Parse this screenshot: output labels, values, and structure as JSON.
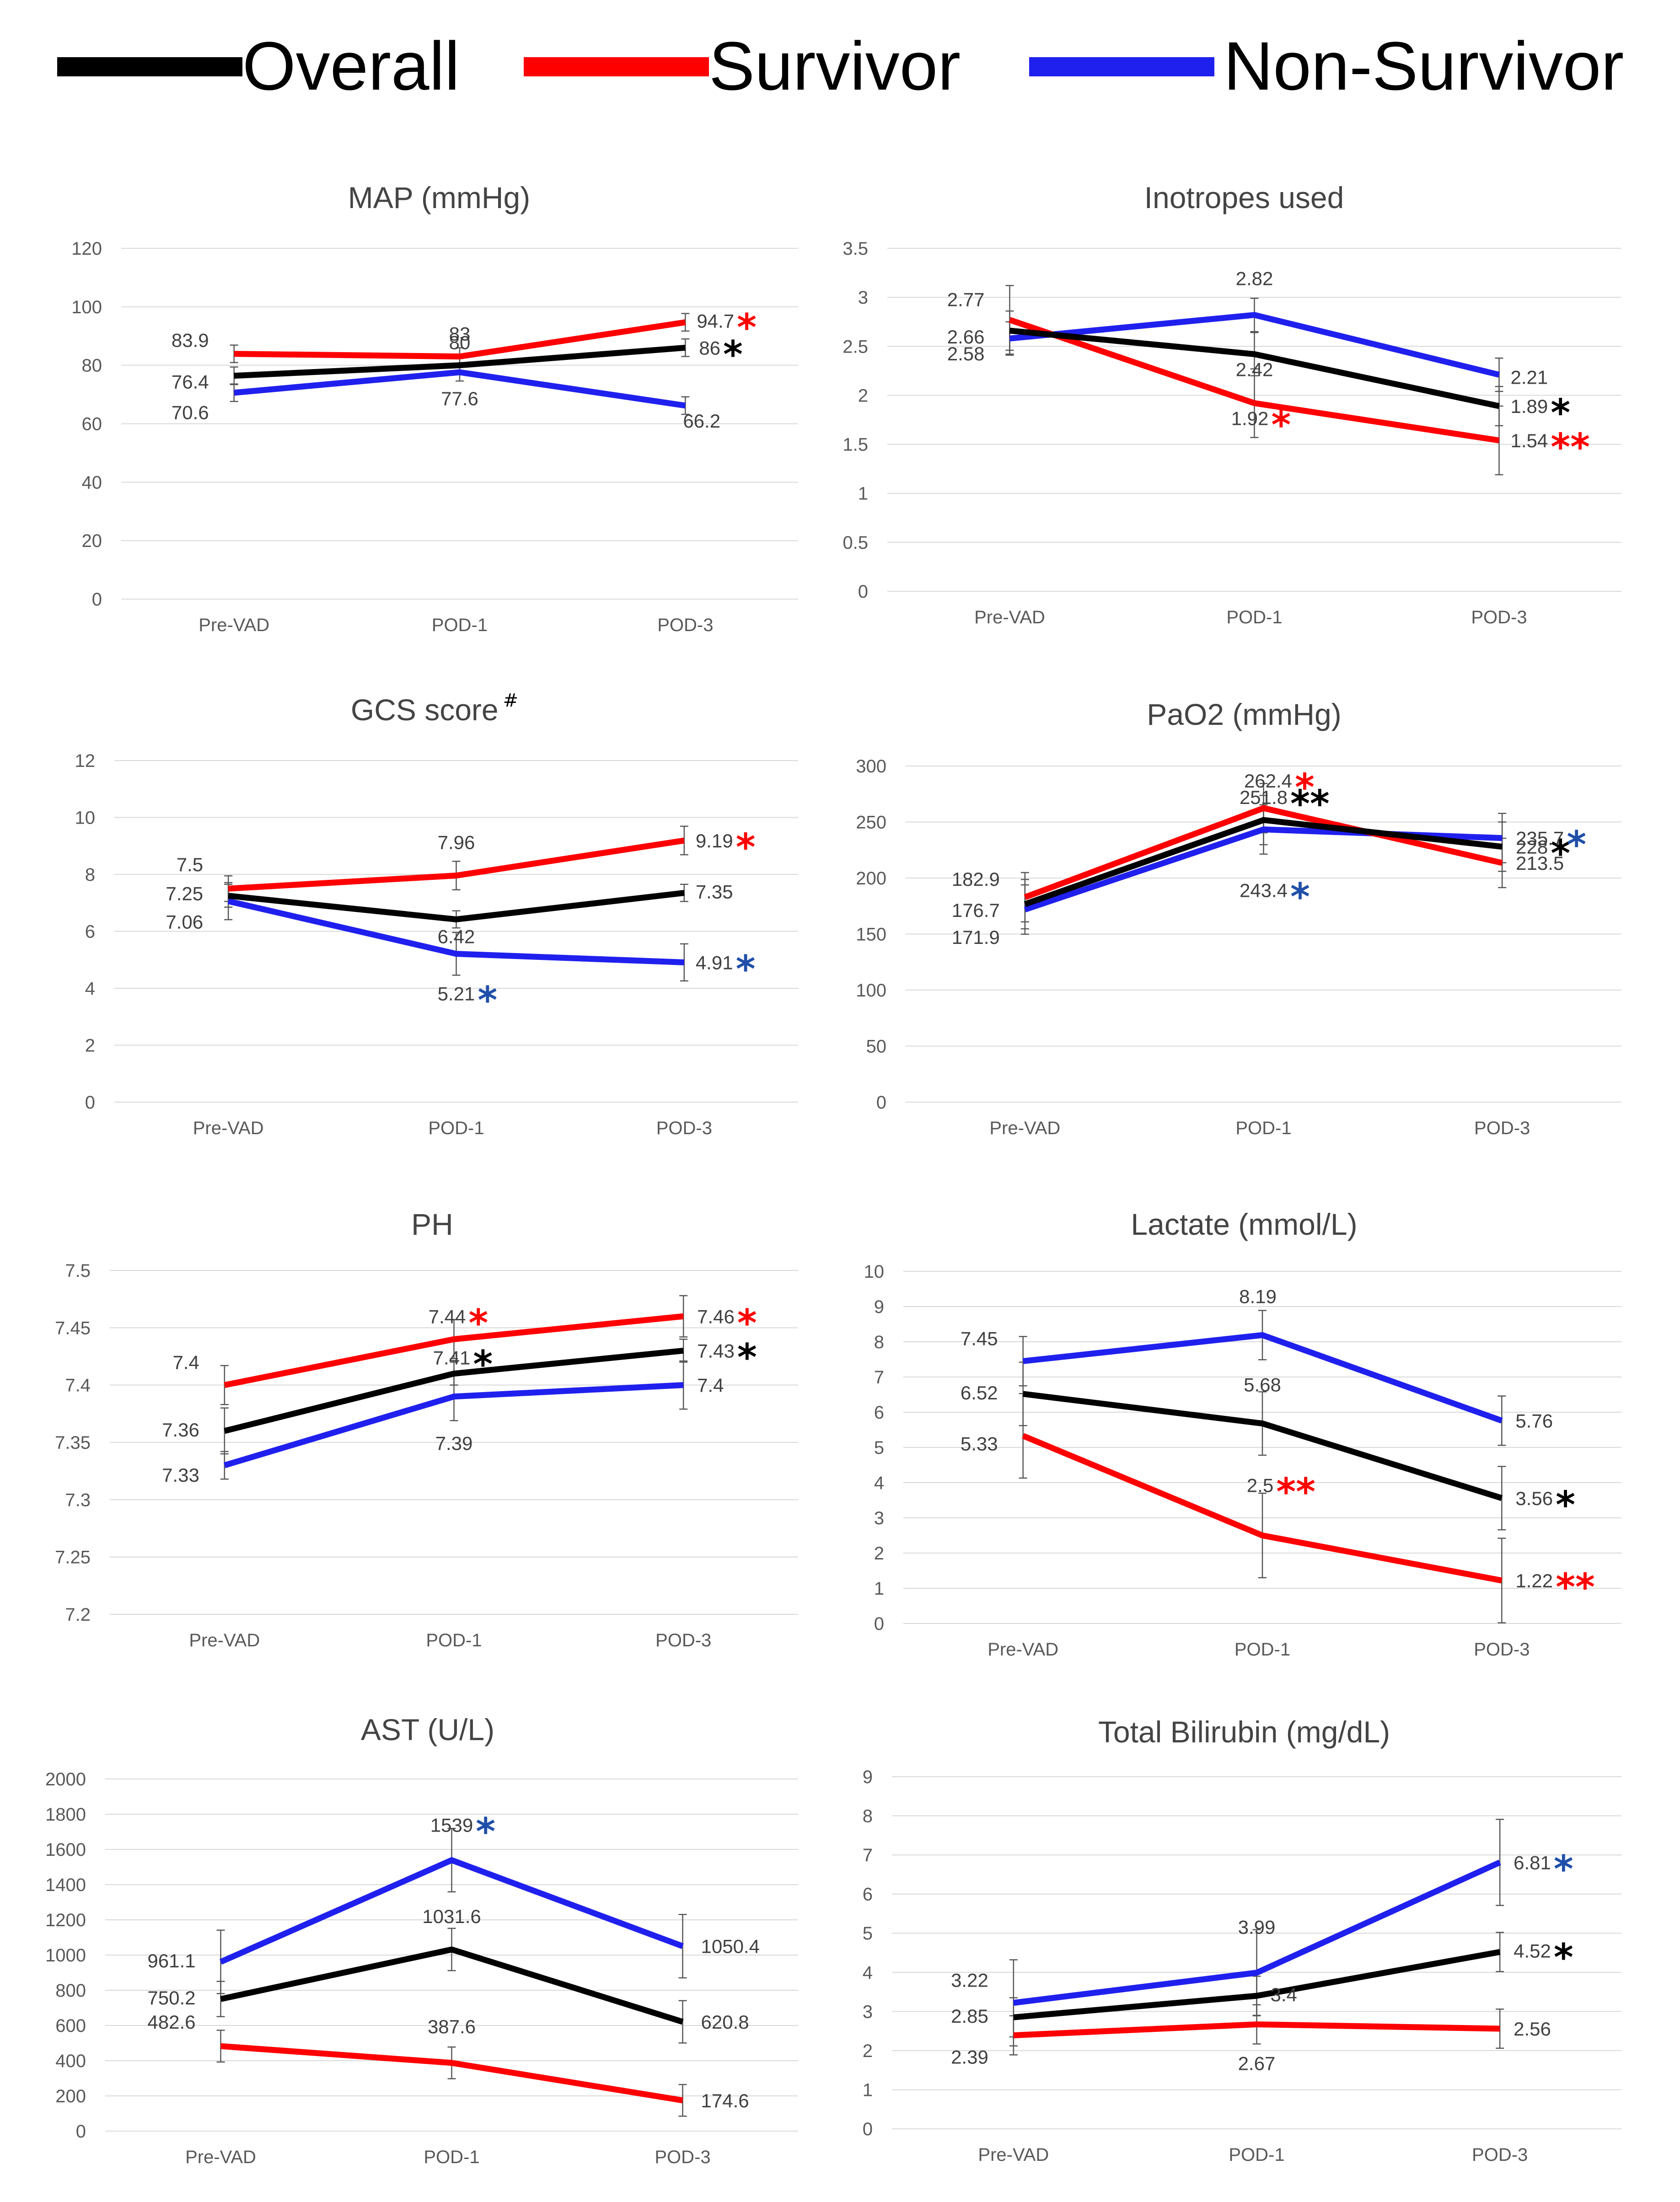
{
  "legend": [
    {
      "name": "Overall",
      "color": "#000000"
    },
    {
      "name": "Survivor",
      "color": "#ff0000"
    },
    {
      "name": "Non-Survivor",
      "color": "#2020ee"
    }
  ],
  "colors": {
    "overall": "#000000",
    "survivor": "#ff0000",
    "nonsurvivor": "#2020ee",
    "grid": "#d9d9d9",
    "star_blue": "#1f4fa8"
  },
  "chart_data": [
    {
      "type": "line",
      "title": "MAP (mmHg)",
      "title_sup": "",
      "categories": [
        "Pre-VAD",
        "POD-1",
        "POD-3"
      ],
      "ylim": [
        0,
        120
      ],
      "yticks": [
        "0",
        "20",
        "40",
        "60",
        "80",
        "100",
        "120"
      ],
      "series": [
        {
          "name": "Overall",
          "values": [
            76.4,
            80,
            86
          ],
          "labels": [
            "76.4",
            "80",
            "86"
          ],
          "stars": [
            "",
            "",
            "*"
          ]
        },
        {
          "name": "Survivor",
          "values": [
            83.9,
            83,
            94.7
          ],
          "labels": [
            "83.9",
            "83",
            "94.7"
          ],
          "stars": [
            "",
            "",
            "*"
          ]
        },
        {
          "name": "Non-Survivor",
          "values": [
            70.6,
            77.6,
            66.2
          ],
          "labels": [
            "70.6",
            "77.6",
            "66.2"
          ],
          "stars": [
            "",
            "",
            ""
          ]
        }
      ]
    },
    {
      "type": "line",
      "title": "Inotropes used",
      "title_sup": "",
      "categories": [
        "Pre-VAD",
        "POD-1",
        "POD-3"
      ],
      "ylim": [
        0,
        3.5
      ],
      "yticks": [
        "0",
        "0.5",
        "1",
        "1.5",
        "2",
        "2.5",
        "3",
        "3.5"
      ],
      "series": [
        {
          "name": "Overall",
          "values": [
            2.66,
            2.42,
            1.89
          ],
          "labels": [
            "2.66",
            "2.42",
            "1.89"
          ],
          "stars": [
            "",
            "",
            "*"
          ]
        },
        {
          "name": "Survivor",
          "values": [
            2.77,
            1.92,
            1.54
          ],
          "labels": [
            "2.77",
            "1.92",
            "1.54"
          ],
          "stars": [
            "",
            "*",
            "**"
          ]
        },
        {
          "name": "Non-Survivor",
          "values": [
            2.58,
            2.82,
            2.21
          ],
          "labels": [
            "2.58",
            "2.82",
            "2.21"
          ],
          "stars": [
            "",
            "",
            ""
          ]
        }
      ]
    },
    {
      "type": "line",
      "title": "GCS score",
      "title_sup": "#",
      "categories": [
        "Pre-VAD",
        "POD-1",
        "POD-3"
      ],
      "ylim": [
        0,
        12
      ],
      "yticks": [
        "0",
        "2",
        "4",
        "6",
        "8",
        "10",
        "12"
      ],
      "series": [
        {
          "name": "Overall",
          "values": [
            7.25,
            6.42,
            7.35
          ],
          "labels": [
            "7.25",
            "6.42",
            "7.35"
          ],
          "stars": [
            "",
            "",
            ""
          ]
        },
        {
          "name": "Survivor",
          "values": [
            7.5,
            7.96,
            9.19
          ],
          "labels": [
            "7.5",
            "7.96",
            "9.19"
          ],
          "stars": [
            "",
            "",
            "*"
          ]
        },
        {
          "name": "Non-Survivor",
          "values": [
            7.06,
            5.21,
            4.91
          ],
          "labels": [
            "7.06",
            "5.21",
            "4.91"
          ],
          "stars": [
            "",
            "*",
            "*"
          ]
        }
      ]
    },
    {
      "type": "line",
      "title": "PaO2 (mmHg)",
      "title_sup": "",
      "categories": [
        "Pre-VAD",
        "POD-1",
        "POD-3"
      ],
      "ylim": [
        0,
        300
      ],
      "yticks": [
        "0",
        "50",
        "100",
        "150",
        "200",
        "250",
        "300"
      ],
      "series": [
        {
          "name": "Overall",
          "values": [
            176.7,
            251.8,
            228
          ],
          "labels": [
            "176.7",
            "251.8",
            "228"
          ],
          "stars": [
            "",
            "**",
            "*"
          ]
        },
        {
          "name": "Survivor",
          "values": [
            182.9,
            262.4,
            213.5
          ],
          "labels": [
            "182.9",
            "262.4",
            "213.5"
          ],
          "stars": [
            "",
            "*",
            ""
          ]
        },
        {
          "name": "Non-Survivor",
          "values": [
            171.9,
            243.4,
            235.7
          ],
          "labels": [
            "171.9",
            "243.4",
            "235.7"
          ],
          "stars": [
            "",
            "*",
            "*"
          ]
        }
      ]
    },
    {
      "type": "line",
      "title": "PH",
      "title_sup": "",
      "categories": [
        "Pre-VAD",
        "POD-1",
        "POD-3"
      ],
      "ylim": [
        7.2,
        7.5
      ],
      "yticks": [
        "7.2",
        "7.25",
        "7.3",
        "7.35",
        "7.4",
        "7.45",
        "7.5"
      ],
      "series": [
        {
          "name": "Overall",
          "values": [
            7.36,
            7.41,
            7.43
          ],
          "labels": [
            "7.36",
            "7.41",
            "7.43"
          ],
          "stars": [
            "",
            "*",
            "*"
          ]
        },
        {
          "name": "Survivor",
          "values": [
            7.4,
            7.44,
            7.46
          ],
          "labels": [
            "7.4",
            "7.44",
            "7.46"
          ],
          "stars": [
            "",
            "*",
            "*"
          ]
        },
        {
          "name": "Non-Survivor",
          "values": [
            7.33,
            7.39,
            7.4
          ],
          "labels": [
            "7.33",
            "7.39",
            "7.4"
          ],
          "stars": [
            "",
            "",
            ""
          ]
        }
      ]
    },
    {
      "type": "line",
      "title": "Lactate (mmol/L)",
      "title_sup": "",
      "categories": [
        "Pre-VAD",
        "POD-1",
        "POD-3"
      ],
      "ylim": [
        0,
        10
      ],
      "yticks": [
        "0",
        "1",
        "2",
        "3",
        "4",
        "5",
        "6",
        "7",
        "8",
        "9",
        "10"
      ],
      "series": [
        {
          "name": "Overall",
          "values": [
            6.52,
            5.68,
            3.56
          ],
          "labels": [
            "6.52",
            "5.68",
            "3.56"
          ],
          "stars": [
            "",
            "",
            "*"
          ]
        },
        {
          "name": "Survivor",
          "values": [
            5.33,
            2.5,
            1.22
          ],
          "labels": [
            "5.33",
            "2.5",
            "1.22"
          ],
          "stars": [
            "",
            "**",
            "**"
          ]
        },
        {
          "name": "Non-Survivor",
          "values": [
            7.45,
            8.19,
            5.76
          ],
          "labels": [
            "7.45",
            "8.19",
            "5.76"
          ],
          "stars": [
            "",
            "",
            ""
          ]
        }
      ]
    },
    {
      "type": "line",
      "title": "AST (U/L)",
      "title_sup": "",
      "categories": [
        "Pre-VAD",
        "POD-1",
        "POD-3"
      ],
      "ylim": [
        0,
        2000
      ],
      "yticks": [
        "0",
        "200",
        "400",
        "600",
        "800",
        "1000",
        "1200",
        "1400",
        "1600",
        "1800",
        "2000"
      ],
      "series": [
        {
          "name": "Overall",
          "values": [
            750.2,
            1031.6,
            620.8
          ],
          "labels": [
            "750.2",
            "1031.6",
            "620.8"
          ],
          "stars": [
            "",
            "",
            ""
          ]
        },
        {
          "name": "Survivor",
          "values": [
            482.6,
            387.6,
            174.6
          ],
          "labels": [
            "482.6",
            "387.6",
            "174.6"
          ],
          "stars": [
            "",
            "",
            ""
          ]
        },
        {
          "name": "Non-Survivor",
          "values": [
            961.1,
            1539,
            1050.4
          ],
          "labels": [
            "961.1",
            "1539",
            "1050.4"
          ],
          "stars": [
            "",
            "*",
            ""
          ]
        }
      ]
    },
    {
      "type": "line",
      "title": "Total Bilirubin (mg/dL)",
      "title_sup": "",
      "categories": [
        "Pre-VAD",
        "POD-1",
        "POD-3"
      ],
      "ylim": [
        0,
        9
      ],
      "yticks": [
        "0",
        "1",
        "2",
        "3",
        "4",
        "5",
        "6",
        "7",
        "8",
        "9"
      ],
      "series": [
        {
          "name": "Overall",
          "values": [
            2.85,
            3.4,
            4.52
          ],
          "labels": [
            "2.85",
            "3.4",
            "4.52"
          ],
          "stars": [
            "",
            "",
            "*"
          ]
        },
        {
          "name": "Survivor",
          "values": [
            2.39,
            2.67,
            2.56
          ],
          "labels": [
            "2.39",
            "2.67",
            "2.56"
          ],
          "stars": [
            "",
            "",
            ""
          ]
        },
        {
          "name": "Non-Survivor",
          "values": [
            3.22,
            3.99,
            6.81
          ],
          "labels": [
            "3.22",
            "3.99",
            "6.81"
          ],
          "stars": [
            "",
            "",
            "*"
          ]
        }
      ]
    }
  ]
}
